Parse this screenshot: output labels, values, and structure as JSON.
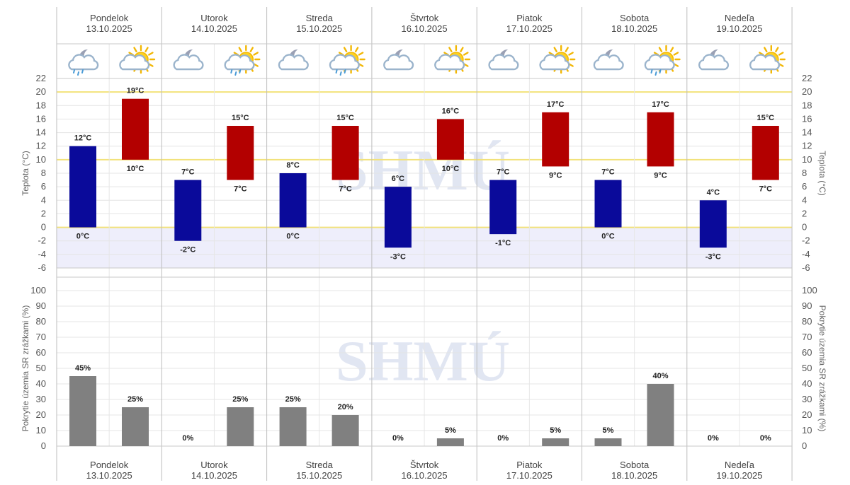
{
  "days": [
    {
      "name": "Pondelok",
      "date": "13.10.2025",
      "night_icon": "partly-cloudy-night-rain-icon",
      "day_icon": "partly-sunny-icon"
    },
    {
      "name": "Utorok",
      "date": "14.10.2025",
      "night_icon": "partly-cloudy-night-icon",
      "day_icon": "partly-sunny-rain-icon"
    },
    {
      "name": "Streda",
      "date": "15.10.2025",
      "night_icon": "partly-cloudy-night-icon",
      "day_icon": "partly-sunny-rain-icon"
    },
    {
      "name": "Štvrtok",
      "date": "16.10.2025",
      "night_icon": "partly-cloudy-night-icon",
      "day_icon": "partly-sunny-icon"
    },
    {
      "name": "Piatok",
      "date": "17.10.2025",
      "night_icon": "partly-cloudy-night-icon",
      "day_icon": "partly-sunny-icon"
    },
    {
      "name": "Sobota",
      "date": "18.10.2025",
      "night_icon": "partly-cloudy-night-icon",
      "day_icon": "partly-sunny-rain-icon"
    },
    {
      "name": "Nedeľa",
      "date": "19.10.2025",
      "night_icon": "partly-cloudy-night-icon",
      "day_icon": "partly-sunny-icon"
    }
  ],
  "watermark": "SHMÚ",
  "chart_data": [
    {
      "type": "bar",
      "ylabel": "Teplota (°C)",
      "ylim": [
        -6,
        22
      ],
      "yticks": [
        -6,
        -4,
        -2,
        0,
        2,
        4,
        6,
        8,
        10,
        12,
        14,
        16,
        18,
        20,
        22
      ],
      "unit": "°C",
      "grid": true,
      "highlight_lines": [
        0,
        10,
        20
      ],
      "negative_band": true,
      "series": [
        {
          "color": "#0a0a9a",
          "low": [
            0,
            -2,
            0,
            -3,
            -1,
            0,
            -3
          ],
          "high": [
            12,
            7,
            8,
            6,
            7,
            7,
            4
          ]
        },
        {
          "color": "#b30000",
          "low": [
            10,
            7,
            7,
            10,
            9,
            9,
            7
          ],
          "high": [
            19,
            15,
            15,
            16,
            17,
            17,
            15
          ]
        }
      ]
    },
    {
      "type": "bar",
      "ylabel": "Pokrytie územia SR zrážkami (%)",
      "ylim": [
        0,
        100
      ],
      "yticks": [
        0,
        10,
        20,
        30,
        40,
        50,
        60,
        70,
        80,
        90,
        100
      ],
      "unit": "%",
      "grid": true,
      "series": [
        {
          "color": "#808080",
          "values": [
            45,
            0,
            25,
            0,
            0,
            5,
            0
          ]
        },
        {
          "color": "#808080",
          "values": [
            25,
            25,
            20,
            5,
            5,
            40,
            0
          ]
        }
      ]
    }
  ]
}
